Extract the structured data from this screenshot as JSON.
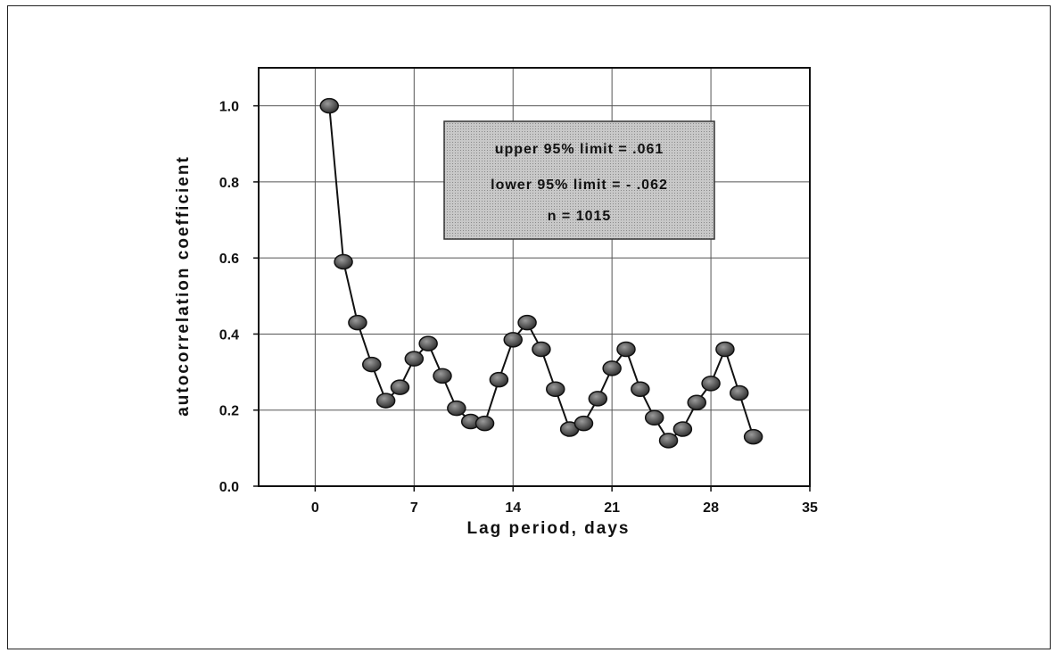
{
  "chart_data": {
    "type": "line",
    "xlabel": "Lag period, days",
    "ylabel": "autocorrelation coefficient",
    "xlim": [
      -4,
      35
    ],
    "ylim": [
      0,
      1.1
    ],
    "xticks": [
      0,
      7,
      14,
      21,
      28,
      35
    ],
    "yticks": [
      0.0,
      0.2,
      0.4,
      0.6,
      0.8,
      1.0
    ],
    "xtick_labels": [
      "0",
      "7",
      "14",
      "21",
      "28",
      "35"
    ],
    "ytick_labels": [
      "0.0",
      "0.2",
      "0.4",
      "0.6",
      "0.8",
      "1.0"
    ],
    "grid": true,
    "annotation": {
      "lines": [
        "upper 95% limit = .061",
        "lower 95% limit = - .062",
        "n = 1015"
      ]
    },
    "series": [
      {
        "x": [
          1,
          2,
          3,
          4,
          5,
          6,
          7,
          8,
          9,
          10,
          11,
          12,
          13,
          14,
          15,
          16,
          17,
          18,
          19,
          20,
          21,
          22,
          23,
          24,
          25,
          26,
          27,
          28,
          29,
          30,
          31
        ],
        "y": [
          1.0,
          0.59,
          0.43,
          0.32,
          0.225,
          0.26,
          0.335,
          0.375,
          0.29,
          0.205,
          0.17,
          0.165,
          0.28,
          0.385,
          0.43,
          0.36,
          0.255,
          0.15,
          0.165,
          0.23,
          0.31,
          0.36,
          0.255,
          0.18,
          0.12,
          0.15,
          0.22,
          0.27,
          0.36,
          0.245,
          0.13
        ]
      }
    ]
  }
}
